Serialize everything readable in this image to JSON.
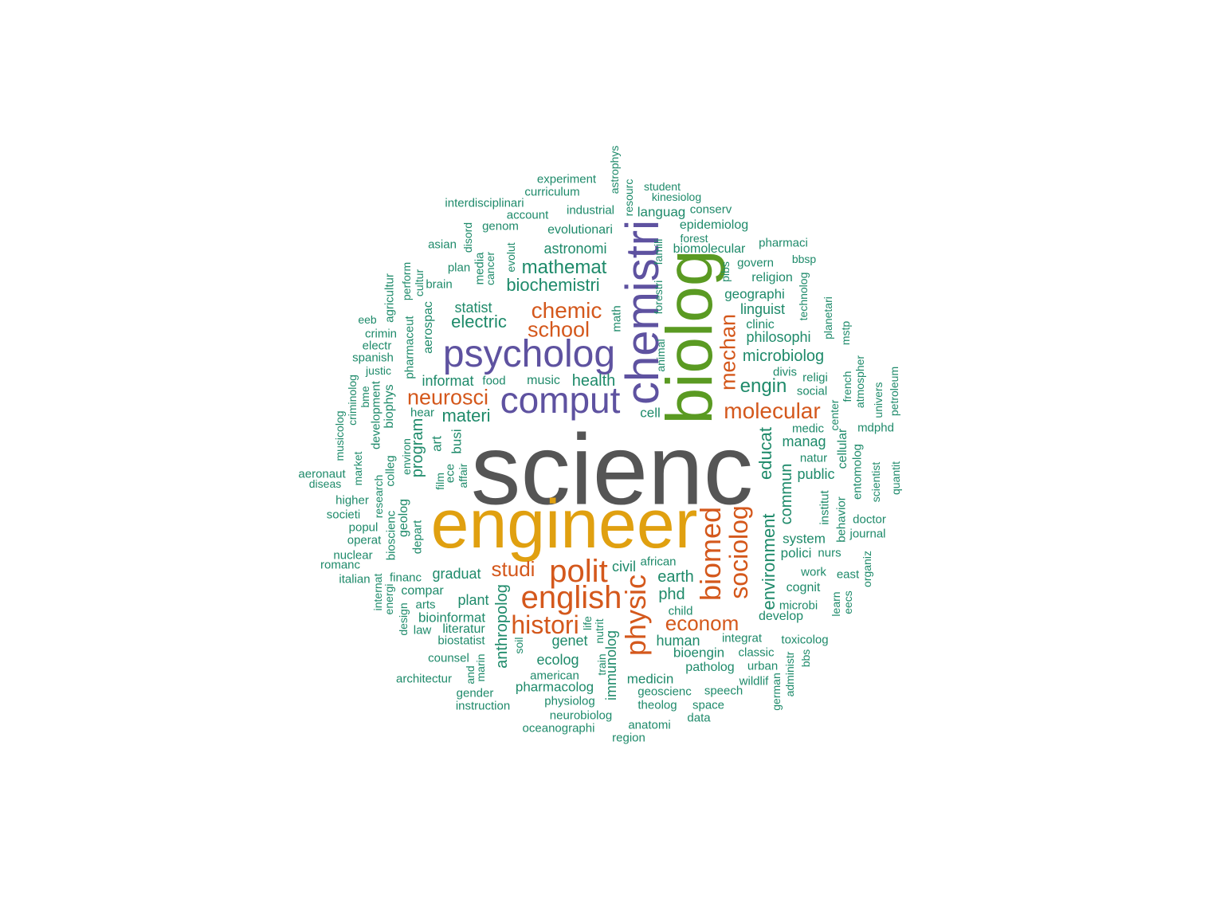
{
  "colors": {
    "level0": "#555555",
    "level1": "#E0A010",
    "level2": "#5E52A0",
    "level3": "#5A9A22",
    "level4": "#D4581C",
    "level5": "#1E8A6A"
  },
  "words": [
    "scienc",
    "engineer",
    "biolog",
    "chemistri",
    "psycholog",
    "comput",
    "english",
    "polit",
    "histori",
    "biomed",
    "physic",
    "sociolog",
    "molecular",
    "chemic",
    "neurosci",
    "school",
    "mechan",
    "econom",
    "studi",
    "mathemat",
    "biochemistri",
    "electric",
    "health",
    "engin",
    "microbiolog",
    "environment",
    "educat",
    "materi",
    "program",
    "commun",
    "public",
    "manag",
    "phd",
    "earth",
    "graduat",
    "anthropolog",
    "genet",
    "human",
    "ecolog",
    "civil",
    "immunolog",
    "astronomi",
    "statist",
    "informat",
    "philosophi",
    "linguist",
    "geographi",
    "plant",
    "bioinformat",
    "medicin",
    "bioengin",
    "pharmacolog",
    "cell",
    "system",
    "polici",
    "cognit",
    "develop",
    "aerospac",
    "music",
    "food",
    "biophys",
    "pharmaceut",
    "agricultur",
    "colleg",
    "geolog",
    "depart",
    "bioscienc",
    "literatur",
    "biostatist",
    "compar",
    "financ",
    "american",
    "physiolog",
    "neurobiolog",
    "oceanographi",
    "anatomi",
    "region",
    "architectur",
    "instruction",
    "gender",
    "counsel",
    "geoscienc",
    "theolog",
    "space",
    "data",
    "speech",
    "patholog",
    "classic",
    "urban",
    "wildlif",
    "integrat",
    "toxicolog",
    "german",
    "administr",
    "microbi",
    "work",
    "learn",
    "eecs",
    "east",
    "organiz",
    "bbs",
    "nurs",
    "institut",
    "behavior",
    "doctor",
    "journal",
    "entomolog",
    "scientist",
    "quantit",
    "mdphd",
    "petroleum",
    "univers",
    "atmospher",
    "french",
    "cellular",
    "center",
    "natur",
    "medic",
    "mstp",
    "planetari",
    "technolog",
    "religi",
    "divis",
    "social",
    "clinic",
    "religion",
    "govern",
    "pibs",
    "pharmaci",
    "bbsp",
    "epidemiolog",
    "conserv",
    "biomolecular",
    "forest",
    "kinesiolog",
    "student",
    "languag",
    "resourc",
    "astrophys",
    "industrial",
    "experiment",
    "curriculum",
    "interdisciplinari",
    "account",
    "genom",
    "evolutionari",
    "asian",
    "plan",
    "disord",
    "media",
    "cancer",
    "evolut",
    "brain",
    "cultur",
    "perform",
    "eeb",
    "crimin",
    "electr",
    "spanish",
    "justic",
    "criminolog",
    "bme",
    "development",
    "musicolog",
    "aeronaut",
    "diseas",
    "market",
    "higher",
    "research",
    "societi",
    "popul",
    "operat",
    "nuclear",
    "romanc",
    "italian",
    "internat",
    "energi",
    "design",
    "arts",
    "law",
    "hear",
    "environ",
    "art",
    "busi",
    "ece",
    "affair",
    "film",
    "math",
    "forestri",
    "famili",
    "animal",
    "african",
    "child",
    "life",
    "nutrit",
    "train",
    "soil",
    "marin",
    "and"
  ]
}
